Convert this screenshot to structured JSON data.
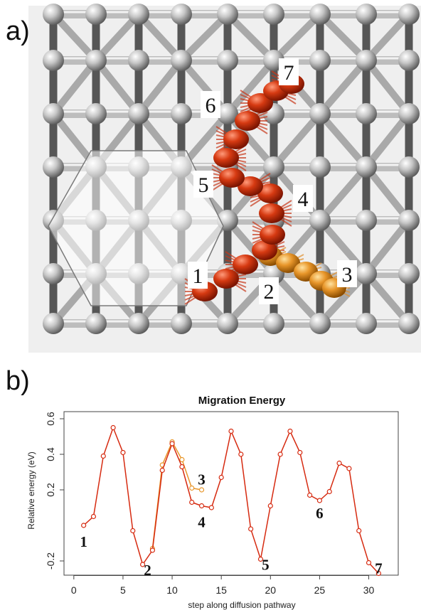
{
  "panel_a": {
    "label": "a)",
    "site_labels": [
      "1",
      "2",
      "3",
      "4",
      "5",
      "6",
      "7"
    ]
  },
  "panel_b": {
    "label": "b)"
  },
  "chart_data": {
    "type": "line",
    "title": "Migration Energy",
    "xlabel": "step along diffusion pathway",
    "ylabel": "Relative energy (eV)",
    "xlim": [
      -1,
      33
    ],
    "ylim": [
      -0.28,
      0.64
    ],
    "xticks": [
      0,
      5,
      10,
      15,
      20,
      25,
      30
    ],
    "xtick_labels": [
      "0",
      "5",
      "10",
      "15",
      "20",
      "25",
      "30"
    ],
    "yticks": [
      -0.2,
      0.2,
      0.4,
      0.6
    ],
    "ytick_labels": [
      "-0.2",
      "0.2",
      "0.4",
      "0.6"
    ],
    "grid": false,
    "series": [
      {
        "color": "#d62a10",
        "x": [
          1,
          2,
          3,
          4,
          5,
          6,
          7,
          8,
          9,
          10,
          11,
          12,
          13,
          14,
          15,
          16,
          17,
          18,
          19,
          20,
          21,
          22,
          23,
          24,
          25,
          26,
          27,
          28,
          29,
          30,
          31
        ],
        "y": [
          0.0,
          0.05,
          0.39,
          0.55,
          0.41,
          -0.03,
          -0.22,
          -0.14,
          0.31,
          0.46,
          0.33,
          0.13,
          0.11,
          0.1,
          0.27,
          0.53,
          0.4,
          -0.02,
          -0.19,
          0.11,
          0.4,
          0.53,
          0.41,
          0.17,
          0.14,
          0.19,
          0.35,
          0.32,
          -0.03,
          -0.21,
          -0.27
        ]
      },
      {
        "color": "#e8962a",
        "x": [
          8,
          9,
          10,
          11,
          12,
          13
        ],
        "y": [
          -0.13,
          0.34,
          0.47,
          0.37,
          0.21,
          0.2
        ]
      }
    ],
    "annotations": [
      {
        "text": "1",
        "x": 1,
        "y": -0.12
      },
      {
        "text": "2",
        "x": 7.5,
        "y": -0.28
      },
      {
        "text": "3",
        "x": 13,
        "y": 0.23
      },
      {
        "text": "4",
        "x": 13,
        "y": -0.01
      },
      {
        "text": "5",
        "x": 19.5,
        "y": -0.25
      },
      {
        "text": "6",
        "x": 25,
        "y": 0.04
      },
      {
        "text": "7",
        "x": 31,
        "y": -0.27
      }
    ]
  }
}
